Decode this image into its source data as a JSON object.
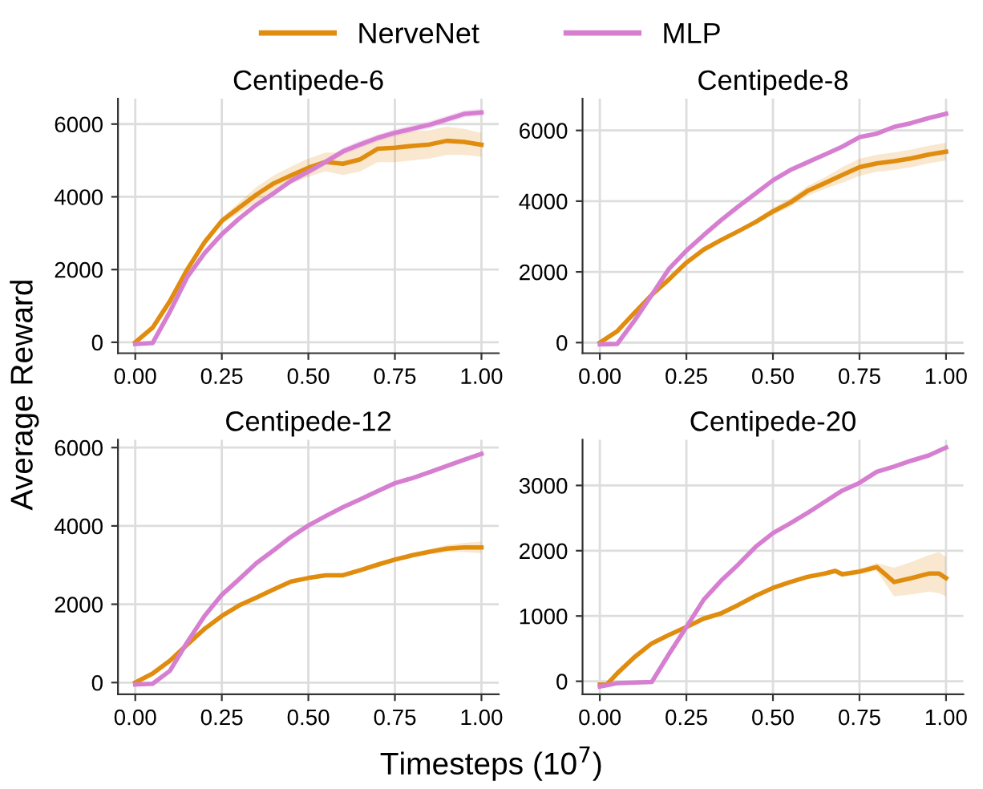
{
  "chart_data": [
    {
      "type": "line",
      "title": "Centipede-6",
      "xlabel": "Timesteps (10$^{7}$)",
      "ylabel": "Average Reward",
      "legend": "top",
      "grid": true,
      "line_style": "solid",
      "xlim": [
        -0.05,
        1.05
      ],
      "ylim": [
        -300,
        6700
      ],
      "xticks": [
        {
          "value": 0,
          "label": "0.00"
        },
        {
          "value": 0.25,
          "label": "0.25"
        },
        {
          "value": 0.5,
          "label": "0.50"
        },
        {
          "value": 0.75,
          "label": "0.75"
        },
        {
          "value": 1,
          "label": "1.00"
        }
      ],
      "yticks": [
        0,
        2000,
        4000,
        6000
      ],
      "x": [
        0,
        0.05,
        0.1,
        0.15,
        0.2,
        0.25,
        0.3,
        0.35,
        0.4,
        0.45,
        0.5,
        0.55,
        0.6,
        0.65,
        0.7,
        0.75,
        0.8,
        0.85,
        0.9,
        0.95,
        1.0
      ],
      "series": [
        {
          "name": "NerveNet",
          "color": "#e08c0e",
          "values": [
            0,
            400,
            1130,
            2000,
            2750,
            3340,
            3700,
            4060,
            4370,
            4590,
            4800,
            4960,
            4910,
            5030,
            5320,
            5350,
            5400,
            5440,
            5540,
            5510,
            5430
          ],
          "lower": [
            0,
            350,
            1080,
            1950,
            2700,
            3250,
            3550,
            3850,
            4150,
            4350,
            4550,
            4700,
            4600,
            4700,
            4950,
            4950,
            5000,
            5050,
            5150,
            5150,
            5100
          ],
          "upper": [
            0,
            450,
            1180,
            2050,
            2800,
            3430,
            3850,
            4270,
            4590,
            4830,
            5050,
            5220,
            5220,
            5360,
            5690,
            5750,
            5800,
            5830,
            5930,
            5870,
            5760
          ]
        },
        {
          "name": "MLP",
          "color": "#d67fd1",
          "values": [
            -50,
            -20,
            840,
            1790,
            2450,
            2970,
            3400,
            3780,
            4100,
            4440,
            4690,
            4960,
            5250,
            5440,
            5620,
            5760,
            5870,
            5980,
            6130,
            6280,
            6320
          ],
          "lower": [
            -50,
            -20,
            800,
            1750,
            2400,
            2920,
            3350,
            3730,
            4030,
            4360,
            4600,
            4870,
            5150,
            5340,
            5520,
            5660,
            5770,
            5880,
            6030,
            6180,
            6220
          ],
          "upper": [
            -50,
            -20,
            880,
            1830,
            2500,
            3020,
            3450,
            3830,
            4170,
            4520,
            4780,
            5050,
            5350,
            5540,
            5720,
            5860,
            5970,
            6080,
            6230,
            6380,
            6420
          ]
        }
      ]
    },
    {
      "type": "line",
      "title": "Centipede-8",
      "grid": true,
      "line_style": "solid",
      "xlim": [
        -0.05,
        1.05
      ],
      "ylim": [
        -300,
        6900
      ],
      "xticks": [
        {
          "value": 0,
          "label": "0.00"
        },
        {
          "value": 0.25,
          "label": "0.25"
        },
        {
          "value": 0.5,
          "label": "0.50"
        },
        {
          "value": 0.75,
          "label": "0.75"
        },
        {
          "value": 1,
          "label": "1.00"
        }
      ],
      "yticks": [
        0,
        2000,
        4000,
        6000
      ],
      "x": [
        0,
        0.05,
        0.1,
        0.15,
        0.2,
        0.25,
        0.3,
        0.35,
        0.4,
        0.45,
        0.5,
        0.55,
        0.6,
        0.65,
        0.7,
        0.75,
        0.8,
        0.85,
        0.9,
        0.95,
        1.0
      ],
      "series": [
        {
          "name": "NerveNet",
          "color": "#e08c0e",
          "values": [
            0,
            320,
            840,
            1350,
            1790,
            2260,
            2630,
            2900,
            3150,
            3410,
            3710,
            3960,
            4290,
            4510,
            4740,
            4960,
            5070,
            5130,
            5210,
            5320,
            5400
          ],
          "lower": [
            0,
            300,
            820,
            1330,
            1770,
            2230,
            2600,
            2860,
            3100,
            3340,
            3610,
            3840,
            4150,
            4350,
            4520,
            4720,
            4830,
            4880,
            4960,
            5070,
            5150
          ],
          "upper": [
            0,
            340,
            860,
            1370,
            1810,
            2290,
            2660,
            2940,
            3200,
            3480,
            3810,
            4080,
            4430,
            4670,
            4960,
            5200,
            5310,
            5380,
            5460,
            5570,
            5650
          ]
        },
        {
          "name": "MLP",
          "color": "#d67fd1",
          "values": [
            -50,
            -40,
            620,
            1350,
            2090,
            2600,
            3040,
            3460,
            3850,
            4220,
            4590,
            4880,
            5100,
            5320,
            5540,
            5810,
            5910,
            6100,
            6210,
            6350,
            6470
          ]
        }
      ]
    },
    {
      "type": "line",
      "title": "Centipede-12",
      "grid": true,
      "line_style": "solid",
      "xlim": [
        -0.05,
        1.05
      ],
      "ylim": [
        -300,
        6200
      ],
      "xticks": [
        {
          "value": 0,
          "label": "0.00"
        },
        {
          "value": 0.25,
          "label": "0.25"
        },
        {
          "value": 0.5,
          "label": "0.50"
        },
        {
          "value": 0.75,
          "label": "0.75"
        },
        {
          "value": 1,
          "label": "1.00"
        }
      ],
      "yticks": [
        0,
        2000,
        4000,
        6000
      ],
      "x": [
        0,
        0.05,
        0.1,
        0.15,
        0.2,
        0.25,
        0.3,
        0.35,
        0.4,
        0.45,
        0.5,
        0.55,
        0.6,
        0.65,
        0.7,
        0.75,
        0.8,
        0.85,
        0.9,
        0.95,
        1.0
      ],
      "series": [
        {
          "name": "NerveNet",
          "color": "#e08c0e",
          "values": [
            0,
            230,
            560,
            970,
            1370,
            1700,
            1970,
            2170,
            2380,
            2580,
            2670,
            2740,
            2740,
            2870,
            3010,
            3140,
            3250,
            3340,
            3420,
            3450,
            3450
          ],
          "lower": [
            0,
            220,
            550,
            960,
            1360,
            1680,
            1950,
            2150,
            2350,
            2550,
            2640,
            2700,
            2700,
            2810,
            2950,
            3080,
            3190,
            3270,
            3330,
            3330,
            3300
          ],
          "upper": [
            0,
            240,
            570,
            980,
            1380,
            1720,
            1990,
            2190,
            2410,
            2610,
            2700,
            2780,
            2780,
            2930,
            3070,
            3200,
            3310,
            3410,
            3510,
            3570,
            3600
          ]
        },
        {
          "name": "MLP",
          "color": "#d67fd1",
          "values": [
            -50,
            -30,
            300,
            1030,
            1700,
            2240,
            2640,
            3050,
            3380,
            3720,
            4010,
            4250,
            4480,
            4680,
            4890,
            5090,
            5220,
            5370,
            5530,
            5690,
            5840
          ]
        }
      ]
    },
    {
      "type": "line",
      "title": "Centipede-20",
      "grid": true,
      "line_style": "solid",
      "xlim": [
        -0.05,
        1.05
      ],
      "ylim": [
        -200,
        3700
      ],
      "xticks": [
        {
          "value": 0,
          "label": "0.00"
        },
        {
          "value": 0.25,
          "label": "0.25"
        },
        {
          "value": 0.5,
          "label": "0.50"
        },
        {
          "value": 0.75,
          "label": "0.75"
        },
        {
          "value": 1,
          "label": "1.00"
        }
      ],
      "yticks": [
        0,
        1000,
        2000,
        3000
      ],
      "series": [
        {
          "name": "NerveNet",
          "color": "#e08c0e",
          "x": [
            0,
            0.02,
            0.05,
            0.1,
            0.15,
            0.2,
            0.25,
            0.3,
            0.35,
            0.4,
            0.45,
            0.5,
            0.55,
            0.6,
            0.65,
            0.68,
            0.7,
            0.75,
            0.8,
            0.85,
            0.9,
            0.95,
            0.98,
            1.0
          ],
          "values": [
            -50,
            -50,
            120,
            370,
            580,
            710,
            830,
            960,
            1040,
            1170,
            1310,
            1430,
            1520,
            1600,
            1650,
            1690,
            1640,
            1680,
            1750,
            1520,
            1580,
            1650,
            1650,
            1580
          ],
          "lower": [
            -50,
            -50,
            115,
            365,
            570,
            700,
            815,
            940,
            1000,
            1130,
            1280,
            1400,
            1490,
            1570,
            1620,
            1650,
            1600,
            1640,
            1690,
            1300,
            1330,
            1370,
            1350,
            1300
          ],
          "upper": [
            -50,
            -50,
            135,
            385,
            590,
            720,
            845,
            980,
            1080,
            1210,
            1340,
            1460,
            1550,
            1630,
            1680,
            1730,
            1680,
            1720,
            1810,
            1740,
            1830,
            1930,
            1980,
            1900
          ]
        },
        {
          "name": "MLP",
          "color": "#d67fd1",
          "x": [
            0,
            0.05,
            0.1,
            0.15,
            0.2,
            0.25,
            0.3,
            0.35,
            0.4,
            0.45,
            0.5,
            0.55,
            0.6,
            0.65,
            0.7,
            0.75,
            0.8,
            0.85,
            0.9,
            0.95,
            1.0
          ],
          "values": [
            -80,
            -30,
            -20,
            -10,
            420,
            830,
            1250,
            1540,
            1790,
            2060,
            2270,
            2420,
            2580,
            2750,
            2920,
            3040,
            3210,
            3290,
            3380,
            3460,
            3580
          ]
        }
      ]
    }
  ]
}
